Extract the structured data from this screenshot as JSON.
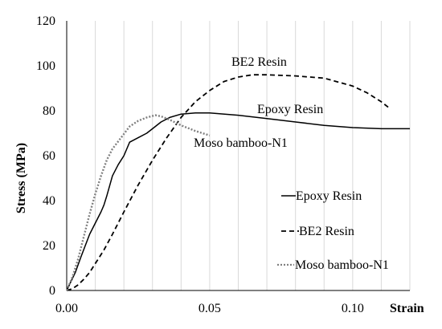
{
  "chart_data": {
    "type": "line",
    "title": "",
    "xlabel": "Strain",
    "ylabel": "Stress (MPa)",
    "xlim": [
      0,
      0.12
    ],
    "ylim": [
      0,
      120
    ],
    "x_ticks": [
      0,
      0.05,
      0.1
    ],
    "x_tick_labels": [
      "0.00",
      "0.05",
      "0.10"
    ],
    "y_ticks": [
      0,
      20,
      40,
      60,
      80,
      100,
      120
    ],
    "y_tick_labels": [
      "0",
      "20",
      "40",
      "60",
      "80",
      "100",
      "120"
    ],
    "grid": {
      "vertical": true,
      "vertical_step": 0.01,
      "horizontal": false
    },
    "legend_placement": "lower-right",
    "series": [
      {
        "name": "Epoxy Resin",
        "line_style": "solid",
        "color": "#000000",
        "x": [
          0,
          0.003,
          0.005,
          0.008,
          0.01,
          0.012,
          0.013,
          0.014,
          0.016,
          0.018,
          0.02,
          0.022,
          0.025,
          0.028,
          0.03,
          0.033,
          0.036,
          0.04,
          0.045,
          0.05,
          0.06,
          0.07,
          0.08,
          0.09,
          0.1,
          0.11,
          0.12
        ],
        "y": [
          0,
          8,
          15,
          25,
          30,
          35,
          38,
          42,
          51,
          56,
          60,
          66,
          68,
          70,
          72,
          75,
          77,
          78.5,
          79,
          79,
          78,
          76.5,
          75,
          73.5,
          72.5,
          72,
          72
        ]
      },
      {
        "name": "BE2 Resin",
        "line_style": "dashed",
        "color": "#000000",
        "x": [
          0,
          0.002,
          0.004,
          0.006,
          0.008,
          0.01,
          0.013,
          0.016,
          0.02,
          0.025,
          0.03,
          0.035,
          0.04,
          0.045,
          0.05,
          0.055,
          0.06,
          0.065,
          0.07,
          0.08,
          0.09,
          0.1,
          0.105,
          0.11,
          0.113
        ],
        "y": [
          0,
          0.8,
          2.5,
          5,
          8,
          12,
          18,
          25,
          35,
          47,
          58,
          68,
          77,
          84,
          89,
          93,
          95,
          96,
          96,
          95.5,
          94.5,
          91,
          88,
          84,
          81
        ]
      },
      {
        "name": "Moso bamboo-N1",
        "line_style": "dotted",
        "color": "#808080",
        "x": [
          0,
          0.002,
          0.004,
          0.006,
          0.008,
          0.01,
          0.012,
          0.014,
          0.016,
          0.019,
          0.022,
          0.025,
          0.028,
          0.031,
          0.033,
          0.036,
          0.04,
          0.045,
          0.05
        ],
        "y": [
          0,
          6,
          14,
          24,
          34,
          43,
          51,
          58,
          63,
          68,
          73,
          75.5,
          77,
          78,
          77.5,
          76,
          73.5,
          71,
          69
        ]
      }
    ],
    "annotations": [
      {
        "text": "BE2 Resin",
        "series": "BE2 Resin"
      },
      {
        "text": "Epoxy Resin",
        "series": "Epoxy Resin"
      },
      {
        "text": "Moso bamboo-N1",
        "series": "Moso bamboo-N1"
      }
    ]
  }
}
